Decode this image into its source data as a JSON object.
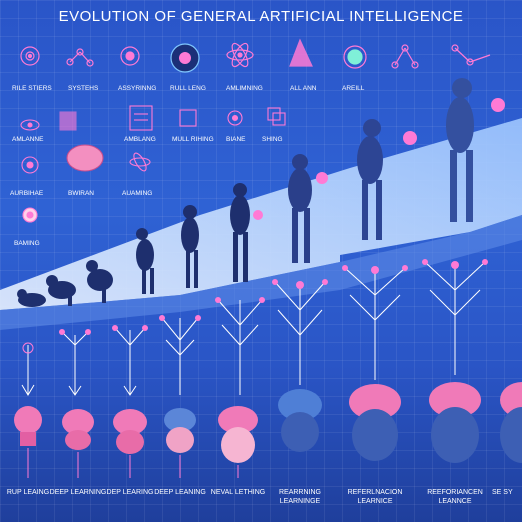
{
  "title": "EVOLUTION OF GENERAL ARTIFICIAL  INTELLIGENCE",
  "top_icon_labels": [
    "RILE STIERS",
    "SYSTEHS",
    "ASSYRINNG",
    "RULL LENG",
    "AMLIMNING",
    "ALL ANN",
    "AREILL"
  ],
  "mid_icon_labels": [
    "AMLANNE",
    "AMBLANG",
    "MULL RIHING",
    "BIANE",
    "SHING"
  ],
  "left_icon_labels": [
    "AURBIHAE",
    "BWIRAN",
    "AUAMING",
    "BAMING"
  ],
  "bottom_labels": [
    "RUP LEAING",
    "DEEP LEARNING",
    "DEP LEARING",
    "DEEP LEANING",
    "NEVAL LETHING",
    "REARRNING LEARNINGE",
    "REFERLNACION LEARNICE",
    "REEFORIANCEN LEANNCE",
    "SE SY"
  ]
}
